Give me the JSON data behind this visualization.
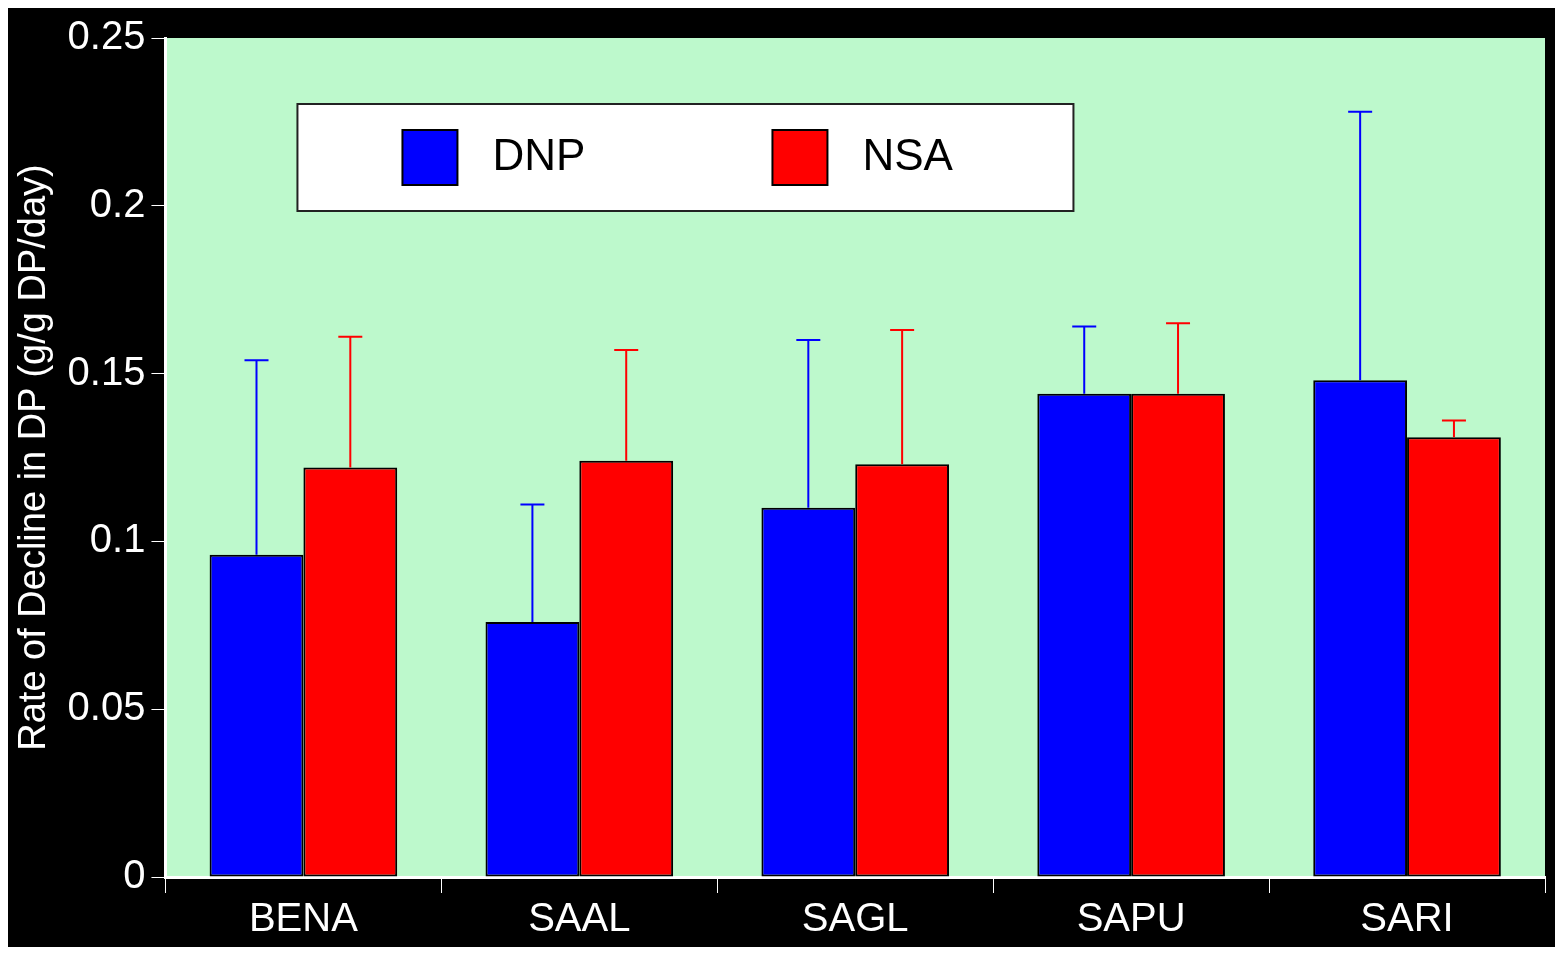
{
  "chart_data": {
    "type": "bar",
    "ylabel": "Rate of Decline in DP (g/g DP/day)",
    "categories": [
      "BENA",
      "SAAL",
      "SAGL",
      "SAPU",
      "SARI"
    ],
    "series": [
      {
        "name": "DNP",
        "color": "#0000ff",
        "values": [
          0.096,
          0.076,
          0.11,
          0.144,
          0.148
        ],
        "errors": [
          [
            0.096,
            0.154
          ],
          [
            0.076,
            0.111
          ],
          [
            0.11,
            0.16
          ],
          [
            0.144,
            0.164
          ],
          [
            0.148,
            0.228
          ]
        ]
      },
      {
        "name": "NSA",
        "color": "#ff0000",
        "values": [
          0.122,
          0.124,
          0.123,
          0.144,
          0.131
        ],
        "errors": [
          [
            0.122,
            0.161
          ],
          [
            0.124,
            0.157
          ],
          [
            0.123,
            0.163
          ],
          [
            0.144,
            0.165
          ],
          [
            0.131,
            0.136
          ]
        ]
      }
    ],
    "ylim": [
      0,
      0.25
    ],
    "yticks": [
      0,
      0.05,
      0.1,
      0.15,
      0.2,
      0.25
    ],
    "legend": "top left",
    "grid": false
  }
}
